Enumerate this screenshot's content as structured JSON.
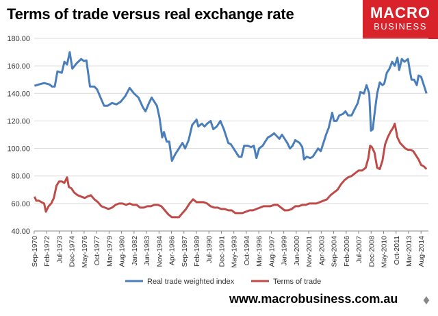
{
  "header": {
    "title": "Terms of trade versus real exchange rate",
    "logo_line1": "MACRO",
    "logo_line2": "BUSINESS"
  },
  "footer": {
    "url": "www.macrobusiness.com.au"
  },
  "icons": {
    "wolf": "wolf-icon"
  },
  "colors": {
    "rtwi": "#4a7ebb",
    "tot": "#be4b48",
    "brand": "#d8232a"
  },
  "chart_data": {
    "type": "line",
    "title": "Terms of trade versus real exchange rate",
    "xlabel": "",
    "ylabel": "",
    "ylim": [
      40,
      180
    ],
    "yticks": [
      "180.00",
      "160.00",
      "140.00",
      "120.00",
      "100.00",
      "80.00",
      "60.00",
      "40.00"
    ],
    "ytick_values": [
      180,
      160,
      140,
      120,
      100,
      80,
      60,
      40
    ],
    "xticks": [
      "Sep-1970",
      "Feb-1972",
      "Jul-1973",
      "Dec-1974",
      "May-1976",
      "Oct-1977",
      "Mar-1979",
      "Aug-1980",
      "Jan-1982",
      "Jun-1983",
      "Nov-1984",
      "Apr-1986",
      "Sep-1987",
      "Feb-1989",
      "Jul-1990",
      "Dec-1991",
      "May-1993",
      "Oct-1994",
      "Mar-1996",
      "Aug-1997",
      "Jan-1999",
      "Jun-2000",
      "Nov-2001",
      "Apr-2003",
      "Sep-2004",
      "Feb-2006",
      "Jul-2007",
      "Dec-2008",
      "May-2010",
      "Oct-2011",
      "Mar-2013",
      "Aug-2014"
    ],
    "x_start": "Sep-1970",
    "x_end": "Jun-2015",
    "grid": true,
    "legend_position": "bottom",
    "series": [
      {
        "name": "Real trade weighted index",
        "points": [
          [
            1970.7,
            145.5
          ],
          [
            1971.2,
            146.5
          ],
          [
            1971.8,
            147.5
          ],
          [
            1972.4,
            146.5
          ],
          [
            1972.7,
            145
          ],
          [
            1973.0,
            145
          ],
          [
            1973.3,
            156
          ],
          [
            1973.8,
            155
          ],
          [
            1974.1,
            163
          ],
          [
            1974.4,
            161
          ],
          [
            1974.7,
            170
          ],
          [
            1975.0,
            158
          ],
          [
            1975.5,
            162
          ],
          [
            1976.0,
            165
          ],
          [
            1976.3,
            163.5
          ],
          [
            1976.6,
            164
          ],
          [
            1977.0,
            145
          ],
          [
            1977.5,
            145
          ],
          [
            1977.8,
            143
          ],
          [
            1978.2,
            137
          ],
          [
            1978.6,
            131
          ],
          [
            1979.0,
            131
          ],
          [
            1979.5,
            133
          ],
          [
            1980.0,
            132
          ],
          [
            1980.5,
            134
          ],
          [
            1981.0,
            138
          ],
          [
            1981.5,
            144
          ],
          [
            1982.0,
            140
          ],
          [
            1982.5,
            137
          ],
          [
            1983.0,
            130
          ],
          [
            1983.3,
            127
          ],
          [
            1983.7,
            133
          ],
          [
            1984.0,
            137
          ],
          [
            1984.4,
            133
          ],
          [
            1984.6,
            131
          ],
          [
            1984.9,
            122
          ],
          [
            1985.2,
            108
          ],
          [
            1985.4,
            112
          ],
          [
            1985.7,
            105
          ],
          [
            1986.0,
            105
          ],
          [
            1986.3,
            91
          ],
          [
            1986.7,
            96
          ],
          [
            1987.1,
            100
          ],
          [
            1987.5,
            104
          ],
          [
            1987.8,
            100
          ],
          [
            1988.2,
            106
          ],
          [
            1988.6,
            117
          ],
          [
            1989.1,
            121
          ],
          [
            1989.3,
            116
          ],
          [
            1989.7,
            118
          ],
          [
            1990.0,
            116
          ],
          [
            1990.3,
            118
          ],
          [
            1990.7,
            120
          ],
          [
            1991.0,
            114
          ],
          [
            1991.4,
            116
          ],
          [
            1991.8,
            120
          ],
          [
            1992.2,
            114
          ],
          [
            1992.7,
            104
          ],
          [
            1993.0,
            103
          ],
          [
            1993.3,
            100
          ],
          [
            1993.6,
            97
          ],
          [
            1993.9,
            94
          ],
          [
            1994.2,
            94
          ],
          [
            1994.5,
            102
          ],
          [
            1994.9,
            102
          ],
          [
            1995.3,
            101
          ],
          [
            1995.6,
            102
          ],
          [
            1995.9,
            93
          ],
          [
            1996.2,
            100
          ],
          [
            1996.6,
            102
          ],
          [
            1996.9,
            105
          ],
          [
            1997.2,
            108
          ],
          [
            1997.5,
            109
          ],
          [
            1997.9,
            111
          ],
          [
            1998.2,
            109
          ],
          [
            1998.5,
            107
          ],
          [
            1998.8,
            110
          ],
          [
            1999.1,
            107
          ],
          [
            1999.4,
            104
          ],
          [
            1999.7,
            100
          ],
          [
            2000.0,
            102
          ],
          [
            2000.3,
            106
          ],
          [
            2000.8,
            104
          ],
          [
            2001.1,
            101
          ],
          [
            2001.3,
            92
          ],
          [
            2001.6,
            94
          ],
          [
            2002.0,
            93
          ],
          [
            2002.3,
            94
          ],
          [
            2002.6,
            97
          ],
          [
            2002.9,
            100
          ],
          [
            2003.2,
            98
          ],
          [
            2003.5,
            104
          ],
          [
            2003.8,
            110
          ],
          [
            2004.1,
            115
          ],
          [
            2004.5,
            126
          ],
          [
            2004.7,
            120
          ],
          [
            2005.0,
            120
          ],
          [
            2005.3,
            124
          ],
          [
            2005.7,
            125
          ],
          [
            2006.0,
            127
          ],
          [
            2006.3,
            124
          ],
          [
            2006.7,
            124
          ],
          [
            2007.0,
            128
          ],
          [
            2007.4,
            133
          ],
          [
            2007.7,
            141
          ],
          [
            2008.1,
            140
          ],
          [
            2008.4,
            146
          ],
          [
            2008.7,
            140
          ],
          [
            2008.9,
            113
          ],
          [
            2009.1,
            114
          ],
          [
            2009.3,
            125
          ],
          [
            2009.6,
            140
          ],
          [
            2009.9,
            148
          ],
          [
            2010.2,
            146
          ],
          [
            2010.4,
            147
          ],
          [
            2010.7,
            155
          ],
          [
            2011.0,
            158
          ],
          [
            2011.3,
            163
          ],
          [
            2011.6,
            160
          ],
          [
            2011.9,
            166
          ],
          [
            2012.1,
            157
          ],
          [
            2012.4,
            165
          ],
          [
            2012.7,
            163
          ],
          [
            2012.9,
            164
          ],
          [
            2013.1,
            165
          ],
          [
            2013.3,
            157
          ],
          [
            2013.5,
            150
          ],
          [
            2013.8,
            150
          ],
          [
            2014.1,
            146
          ],
          [
            2014.3,
            153
          ],
          [
            2014.6,
            152
          ],
          [
            2014.9,
            146
          ],
          [
            2015.2,
            140
          ]
        ]
      },
      {
        "name": "Terms of trade",
        "points": [
          [
            1970.7,
            65
          ],
          [
            1970.9,
            62
          ],
          [
            1971.2,
            62
          ],
          [
            1971.5,
            61
          ],
          [
            1971.8,
            60
          ],
          [
            1972.0,
            54
          ],
          [
            1972.3,
            58
          ],
          [
            1972.6,
            60
          ],
          [
            1972.9,
            64
          ],
          [
            1973.2,
            73
          ],
          [
            1973.5,
            76
          ],
          [
            1973.8,
            76
          ],
          [
            1974.1,
            75
          ],
          [
            1974.4,
            79
          ],
          [
            1974.6,
            72
          ],
          [
            1974.9,
            71
          ],
          [
            1975.2,
            68
          ],
          [
            1975.6,
            66
          ],
          [
            1976.0,
            65
          ],
          [
            1976.4,
            64
          ],
          [
            1976.7,
            65
          ],
          [
            1977.1,
            66
          ],
          [
            1977.5,
            63
          ],
          [
            1977.9,
            61
          ],
          [
            1978.3,
            58
          ],
          [
            1978.7,
            57
          ],
          [
            1979.1,
            56
          ],
          [
            1979.5,
            57
          ],
          [
            1979.9,
            59
          ],
          [
            1980.3,
            60
          ],
          [
            1980.7,
            60
          ],
          [
            1981.1,
            59
          ],
          [
            1981.5,
            60
          ],
          [
            1981.9,
            59
          ],
          [
            1982.3,
            59
          ],
          [
            1982.7,
            57
          ],
          [
            1983.1,
            57
          ],
          [
            1983.5,
            58
          ],
          [
            1983.9,
            58
          ],
          [
            1984.3,
            59
          ],
          [
            1984.7,
            59
          ],
          [
            1985.1,
            58
          ],
          [
            1985.5,
            55
          ],
          [
            1985.9,
            52
          ],
          [
            1986.3,
            50
          ],
          [
            1986.7,
            50
          ],
          [
            1987.1,
            50
          ],
          [
            1987.5,
            53
          ],
          [
            1987.9,
            56
          ],
          [
            1988.3,
            60
          ],
          [
            1988.7,
            63
          ],
          [
            1989.1,
            61
          ],
          [
            1989.5,
            61
          ],
          [
            1989.9,
            61
          ],
          [
            1990.3,
            60
          ],
          [
            1990.7,
            58
          ],
          [
            1991.1,
            57
          ],
          [
            1991.5,
            57
          ],
          [
            1991.9,
            56
          ],
          [
            1992.3,
            56
          ],
          [
            1992.7,
            55
          ],
          [
            1993.1,
            55
          ],
          [
            1993.5,
            53
          ],
          [
            1993.9,
            53
          ],
          [
            1994.3,
            53
          ],
          [
            1994.7,
            54
          ],
          [
            1995.1,
            55
          ],
          [
            1995.5,
            55
          ],
          [
            1995.9,
            56
          ],
          [
            1996.3,
            57
          ],
          [
            1996.7,
            58
          ],
          [
            1997.1,
            58
          ],
          [
            1997.5,
            58
          ],
          [
            1997.9,
            59
          ],
          [
            1998.3,
            59
          ],
          [
            1998.7,
            57
          ],
          [
            1999.1,
            55
          ],
          [
            1999.5,
            55
          ],
          [
            1999.9,
            56
          ],
          [
            2000.3,
            58
          ],
          [
            2000.7,
            58
          ],
          [
            2001.1,
            59
          ],
          [
            2001.5,
            59
          ],
          [
            2001.9,
            60
          ],
          [
            2002.3,
            60
          ],
          [
            2002.7,
            60
          ],
          [
            2003.1,
            61
          ],
          [
            2003.5,
            62
          ],
          [
            2003.9,
            63
          ],
          [
            2004.3,
            66
          ],
          [
            2004.7,
            68
          ],
          [
            2005.1,
            70
          ],
          [
            2005.5,
            74
          ],
          [
            2005.9,
            77
          ],
          [
            2006.3,
            79
          ],
          [
            2006.7,
            80
          ],
          [
            2007.1,
            82
          ],
          [
            2007.5,
            84
          ],
          [
            2007.9,
            84
          ],
          [
            2008.3,
            86
          ],
          [
            2008.6,
            93
          ],
          [
            2008.8,
            102
          ],
          [
            2009.0,
            101
          ],
          [
            2009.3,
            97
          ],
          [
            2009.6,
            86
          ],
          [
            2009.9,
            85
          ],
          [
            2010.2,
            91
          ],
          [
            2010.5,
            103
          ],
          [
            2010.8,
            108
          ],
          [
            2011.1,
            112
          ],
          [
            2011.4,
            115
          ],
          [
            2011.6,
            118
          ],
          [
            2011.9,
            108
          ],
          [
            2012.2,
            104
          ],
          [
            2012.5,
            102
          ],
          [
            2012.8,
            100
          ],
          [
            2013.1,
            99
          ],
          [
            2013.4,
            99
          ],
          [
            2013.7,
            98
          ],
          [
            2014.0,
            95
          ],
          [
            2014.3,
            92
          ],
          [
            2014.6,
            88
          ],
          [
            2014.9,
            87
          ],
          [
            2015.2,
            85
          ]
        ]
      }
    ]
  }
}
